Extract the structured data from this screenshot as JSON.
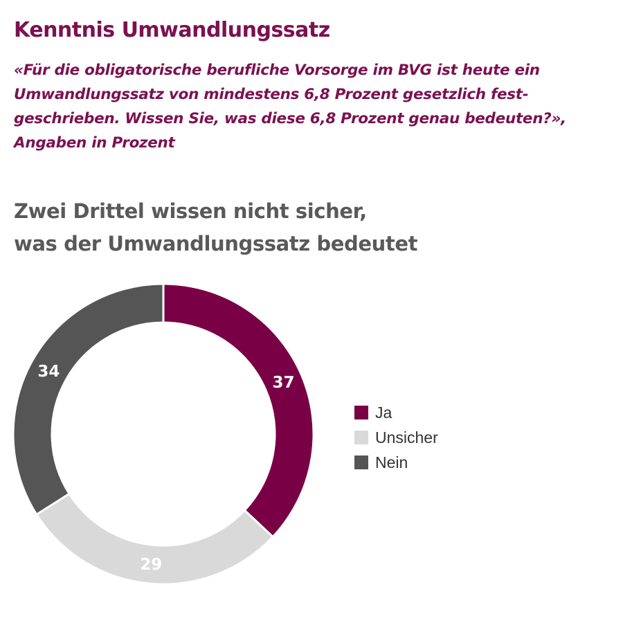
{
  "chart_data": {
    "type": "pie",
    "variant": "donut",
    "title": "Kenntnis Umwandlungssatz",
    "subtitle_lines": [
      "«Für die obligatorische berufliche Vorsorge im BVG ist heute ein",
      "Umwandlungssatz von mindestens 6,8 Prozent gesetzlich fest-",
      "geschrieben. Wissen Sie, was diese 6,8 Prozent genau bedeuten?»,",
      "Angaben in Prozent"
    ],
    "headline_lines": [
      "Zwei Drittel wissen nicht sicher,",
      "was der Umwandlungssatz bedeutet"
    ],
    "categories": [
      "Ja",
      "Unsicher",
      "Nein"
    ],
    "values": [
      37,
      29,
      34
    ],
    "colors": [
      "#7a0046",
      "#d9d9d9",
      "#555555"
    ],
    "label_colors": [
      "#ffffff",
      "#ffffff",
      "#ffffff"
    ],
    "start_angle": "12 o'clock, clockwise",
    "legend_position": "right"
  }
}
